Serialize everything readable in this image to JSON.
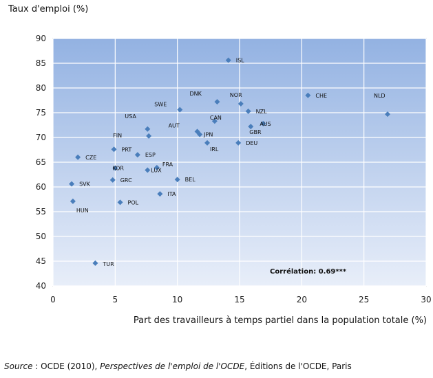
{
  "chart_data": {
    "type": "scatter",
    "ylabel": "Taux d'emploi (%)",
    "xlabel": "Part des travailleurs à temps partiel dans la population totale (%)",
    "xlim": [
      0,
      30
    ],
    "ylim": [
      40,
      90
    ],
    "xticks": [
      0,
      5,
      10,
      15,
      20,
      25,
      30
    ],
    "yticks": [
      40,
      45,
      50,
      55,
      60,
      65,
      70,
      75,
      80,
      85,
      90
    ],
    "grid": true,
    "annotation": "Corrélation: 0.69***",
    "marker_color": "#4a7ebb",
    "points": [
      {
        "label": "ISL",
        "x": 14.1,
        "y": 85.6
      },
      {
        "label": "DNK",
        "x": 13.2,
        "y": 77.2
      },
      {
        "label": "NOR",
        "x": 15.1,
        "y": 76.8
      },
      {
        "label": "NZL",
        "x": 15.7,
        "y": 75.3
      },
      {
        "label": "SWE",
        "x": 10.2,
        "y": 75.6
      },
      {
        "label": "CHE",
        "x": 20.5,
        "y": 78.5
      },
      {
        "label": "NLD",
        "x": 26.9,
        "y": 74.7
      },
      {
        "label": "USA",
        "x": 7.6,
        "y": 71.7
      },
      {
        "label": "FIN",
        "x": 7.7,
        "y": 70.3
      },
      {
        "label": "AUT",
        "x": 11.6,
        "y": 71.2
      },
      {
        "label": "JPN",
        "x": 11.8,
        "y": 70.6
      },
      {
        "label": "CAN",
        "x": 13.0,
        "y": 73.3
      },
      {
        "label": "AUS",
        "x": 16.9,
        "y": 72.8
      },
      {
        "label": "GBR",
        "x": 15.9,
        "y": 72.2
      },
      {
        "label": "IRL",
        "x": 12.4,
        "y": 68.9
      },
      {
        "label": "DEU",
        "x": 14.9,
        "y": 68.9
      },
      {
        "label": "PRT",
        "x": 4.9,
        "y": 67.6
      },
      {
        "label": "CZE",
        "x": 2.0,
        "y": 66.0
      },
      {
        "label": "ESP",
        "x": 6.8,
        "y": 66.5
      },
      {
        "label": "FRA",
        "x": 8.35,
        "y": 63.9
      },
      {
        "label": "LUX",
        "x": 7.6,
        "y": 63.4
      },
      {
        "label": "KOR",
        "x": 5.0,
        "y": 63.8
      },
      {
        "label": "GRC",
        "x": 4.8,
        "y": 61.4
      },
      {
        "label": "BEL",
        "x": 10.0,
        "y": 61.5
      },
      {
        "label": "SVK",
        "x": 1.5,
        "y": 60.6
      },
      {
        "label": "ITA",
        "x": 8.6,
        "y": 58.6
      },
      {
        "label": "HUN",
        "x": 1.6,
        "y": 57.1
      },
      {
        "label": "POL",
        "x": 5.4,
        "y": 56.9
      },
      {
        "label": "TUR",
        "x": 3.4,
        "y": 44.6
      }
    ]
  },
  "source": {
    "prefix": "Source",
    "sep": " : OCDE (2010), ",
    "title": "Perspectives de l'emploi de l'OCDE",
    "suffix": ", Éditions de l'OCDE, Paris"
  }
}
